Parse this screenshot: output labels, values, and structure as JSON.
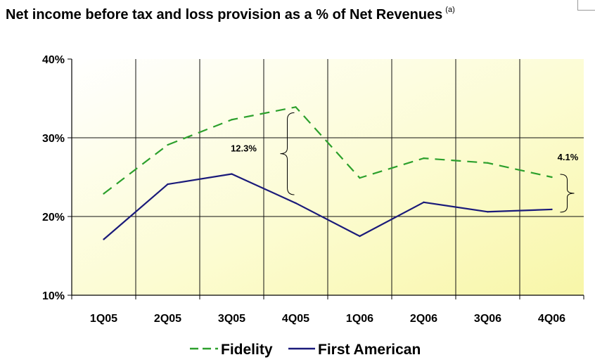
{
  "chart_data": {
    "type": "line",
    "title": "Net income before tax and loss provision as a % of Net Revenues",
    "title_note": "(a)",
    "categories": [
      "1Q05",
      "2Q05",
      "3Q05",
      "4Q05",
      "1Q06",
      "2Q06",
      "3Q06",
      "4Q06"
    ],
    "y_ticks": [
      "10%",
      "20%",
      "30%",
      "40%"
    ],
    "ylim": [
      10,
      40
    ],
    "grid": true,
    "legend_position": "bottom",
    "series": [
      {
        "name": "Fidelity",
        "values": [
          22.9,
          29.1,
          32.3,
          33.9,
          24.9,
          27.4,
          26.8,
          25.0
        ],
        "color": "#2ca02c",
        "style": "dashed"
      },
      {
        "name": "First American",
        "values": [
          17.1,
          24.1,
          25.4,
          21.7,
          17.5,
          21.8,
          20.6,
          20.9
        ],
        "color": "#1a1a7a",
        "style": "solid"
      }
    ],
    "annotations": [
      {
        "text": "12.3%",
        "category": "4Q05",
        "from": 21.7,
        "to": 33.9
      },
      {
        "text": "4.1%",
        "category": "4Q06",
        "from": 20.9,
        "to": 25.0
      }
    ]
  }
}
